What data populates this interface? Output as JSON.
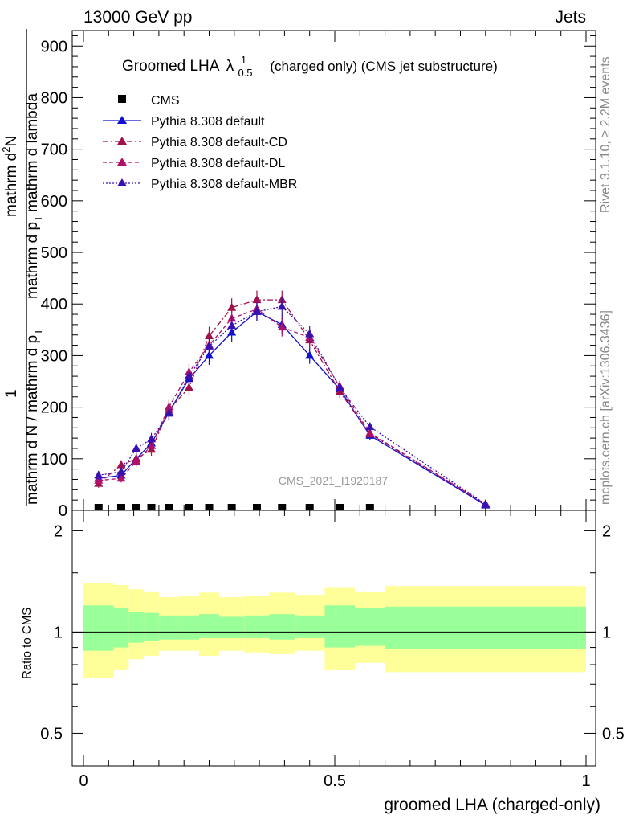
{
  "header": {
    "left": "13000 GeV pp",
    "right": "Jets"
  },
  "side_labels": {
    "rivet": "Rivet 3.1.10, ≥ 2.2M events",
    "mcplots": "mcplots.cern.ch [arXiv:1306.3436]"
  },
  "watermark": "CMS_2021_I1920187",
  "chart_data": [
    {
      "type": "line",
      "title_main": "Groomed LHA",
      "title_symbol": "λ",
      "title_sup": "1",
      "title_sub": "0.5",
      "title_rest": "(charged only) (CMS jet substructure)",
      "ylabel_left": "mathrm d N / mathrm d p",
      "ylabel_left_sub": "T",
      "ylabel_right": "mathrm d p",
      "ylabel_right_sub": "T",
      "ylabel_right_rest": "mathrm d lambda",
      "ylabel_num_left": "1",
      "ylabel_num_right": "mathrm d",
      "ylabel_num_right_sup": "2",
      "ylabel_num_right_rest": "N",
      "xlim": [
        0,
        1
      ],
      "ylim": [
        0,
        930
      ],
      "y_ticks": [
        0,
        100,
        200,
        300,
        400,
        500,
        600,
        700,
        800,
        900
      ],
      "x_ticks": [
        0,
        0.5,
        1
      ],
      "legend": [
        {
          "key": "cms",
          "label": "CMS"
        },
        {
          "key": "default",
          "label": "Pythia 8.308 default"
        },
        {
          "key": "cd",
          "label": "Pythia 8.308 default-CD"
        },
        {
          "key": "dl",
          "label": "Pythia 8.308 default-DL"
        },
        {
          "key": "mbr",
          "label": "Pythia 8.308 default-MBR"
        }
      ],
      "x": [
        0.03,
        0.075,
        0.105,
        0.135,
        0.17,
        0.21,
        0.25,
        0.295,
        0.345,
        0.395,
        0.45,
        0.51,
        0.57,
        0.8
      ],
      "cms": [
        0,
        0,
        0,
        0,
        0,
        0,
        0,
        0,
        0,
        0,
        0,
        0,
        0,
        0
      ],
      "series": [
        {
          "key": "default",
          "color": "#1010d0",
          "dash": "",
          "values": [
            62,
            68,
            100,
            130,
            190,
            255,
            300,
            345,
            385,
            360,
            300,
            235,
            145,
            10
          ],
          "err": [
            8,
            8,
            10,
            12,
            14,
            16,
            18,
            18,
            18,
            18,
            16,
            12,
            8,
            2
          ]
        },
        {
          "key": "cd",
          "color": "#a0104a",
          "dash": "7,3,2,3",
          "values": [
            52,
            88,
            100,
            118,
            195,
            238,
            338,
            393,
            408,
            408,
            330,
            230,
            148,
            12
          ],
          "err": [
            8,
            9,
            10,
            12,
            14,
            16,
            18,
            18,
            18,
            18,
            16,
            12,
            8,
            2
          ]
        },
        {
          "key": "dl",
          "color": "#b0106a",
          "dash": "5,3",
          "values": [
            58,
            62,
            95,
            125,
            200,
            268,
            320,
            372,
            390,
            355,
            335,
            240,
            150,
            12
          ],
          "err": [
            8,
            8,
            10,
            12,
            14,
            16,
            18,
            18,
            18,
            18,
            16,
            12,
            8,
            2
          ]
        },
        {
          "key": "mbr",
          "color": "#3a10b0",
          "dash": "2,2",
          "values": [
            68,
            75,
            120,
            138,
            188,
            260,
            318,
            358,
            385,
            395,
            342,
            238,
            162,
            12
          ],
          "err": [
            8,
            8,
            10,
            12,
            14,
            16,
            18,
            18,
            18,
            18,
            16,
            12,
            8,
            2
          ]
        }
      ]
    },
    {
      "type": "area",
      "ylabel": "Ratio to CMS",
      "xlabel": "groomed LHA (charged-only)",
      "xlim": [
        0,
        1
      ],
      "ylim": [
        0.4,
        2.3
      ],
      "y_scale": "log",
      "y_ticks": [
        0.5,
        1,
        2
      ],
      "x_ticks": [
        0,
        0.5,
        1
      ],
      "bins": [
        0,
        0.06,
        0.09,
        0.12,
        0.15,
        0.19,
        0.23,
        0.27,
        0.32,
        0.37,
        0.42,
        0.48,
        0.54,
        0.6,
        1.0
      ],
      "band_inner": [
        [
          0.88,
          1.2
        ],
        [
          0.9,
          1.18
        ],
        [
          0.93,
          1.15
        ],
        [
          0.94,
          1.14
        ],
        [
          0.95,
          1.12
        ],
        [
          0.95,
          1.12
        ],
        [
          0.96,
          1.13
        ],
        [
          0.96,
          1.11
        ],
        [
          0.96,
          1.12
        ],
        [
          0.95,
          1.13
        ],
        [
          0.96,
          1.12
        ],
        [
          0.9,
          1.2
        ],
        [
          0.91,
          1.18
        ],
        [
          0.89,
          1.19
        ]
      ],
      "band_outer": [
        [
          0.73,
          1.4
        ],
        [
          0.77,
          1.38
        ],
        [
          0.83,
          1.34
        ],
        [
          0.85,
          1.32
        ],
        [
          0.88,
          1.27
        ],
        [
          0.88,
          1.28
        ],
        [
          0.85,
          1.31
        ],
        [
          0.88,
          1.27
        ],
        [
          0.87,
          1.28
        ],
        [
          0.86,
          1.31
        ],
        [
          0.88,
          1.29
        ],
        [
          0.77,
          1.36
        ],
        [
          0.81,
          1.32
        ],
        [
          0.76,
          1.37
        ]
      ],
      "ref_line": 1
    }
  ]
}
